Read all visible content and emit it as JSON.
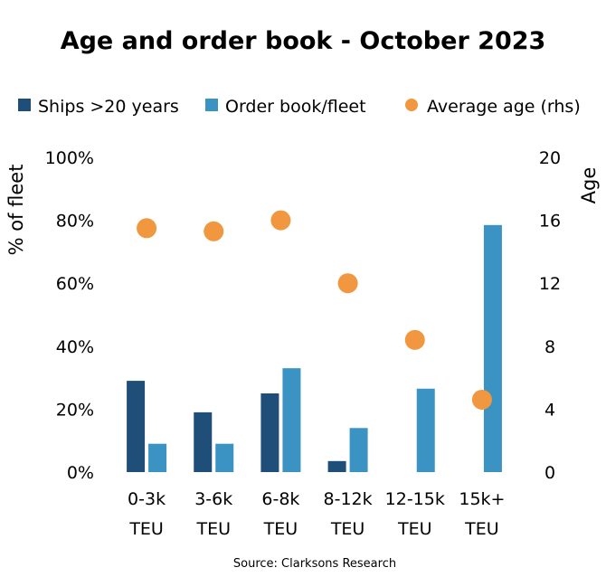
{
  "colors": {
    "ships_over_20": "#1f4e79",
    "order_book": "#3a93c3",
    "average_age": "#f0973f"
  },
  "chart_data": {
    "type": "bar",
    "title": "Age and order book - October 2023",
    "ylabel": "% of fleet",
    "y2label": "Age",
    "ylim": [
      0,
      100
    ],
    "y2lim": [
      0,
      20
    ],
    "yticks": [
      "0%",
      "20%",
      "40%",
      "60%",
      "80%",
      "100%"
    ],
    "y2ticks": [
      "0",
      "4",
      "8",
      "12",
      "16",
      "20"
    ],
    "legend_position": "top",
    "grid": false,
    "categories": [
      [
        "0-3k",
        "TEU"
      ],
      [
        "3-6k",
        "TEU"
      ],
      [
        "6-8k",
        "TEU"
      ],
      [
        "8-12k",
        "TEU"
      ],
      [
        "12-15k",
        "TEU"
      ],
      [
        "15k+",
        "TEU"
      ]
    ],
    "series": [
      {
        "name": "Ships >20 years",
        "type": "bar",
        "axis": "left",
        "values": [
          29,
          19,
          25,
          3.5,
          0,
          0
        ]
      },
      {
        "name": "Order book/fleet",
        "type": "bar",
        "axis": "left",
        "values": [
          9,
          9,
          33,
          14,
          26.5,
          78.5
        ]
      },
      {
        "name": "Average age (rhs)",
        "type": "scatter",
        "axis": "right",
        "values": [
          15.5,
          15.3,
          16.0,
          12.0,
          8.4,
          4.6
        ]
      }
    ],
    "source": "Source: Clarksons Research"
  }
}
